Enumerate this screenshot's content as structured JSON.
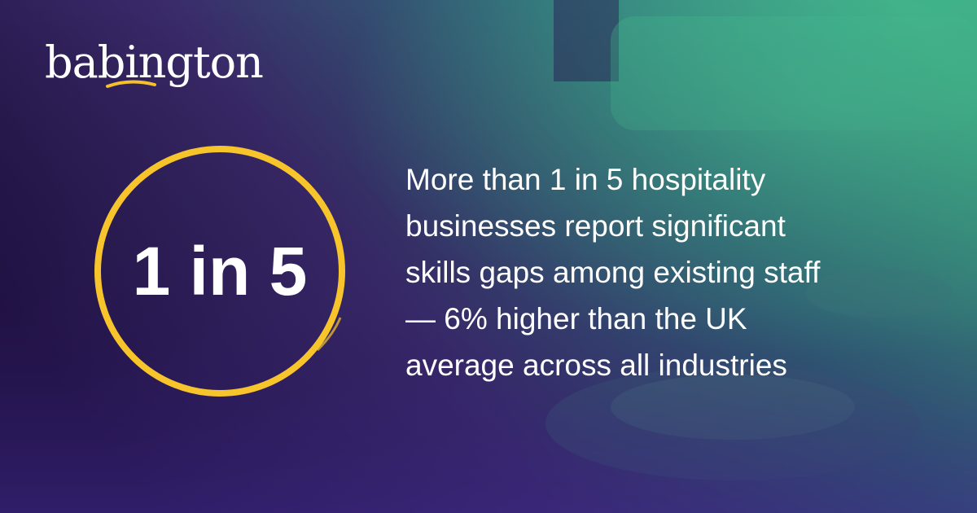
{
  "brand": "babington",
  "stat": "1 in 5",
  "body": [
    "More than 1 in 5 hospitality",
    "businesses report significant",
    "skills gaps among existing staff",
    "— 6% higher than the UK",
    "average across all industries"
  ]
}
